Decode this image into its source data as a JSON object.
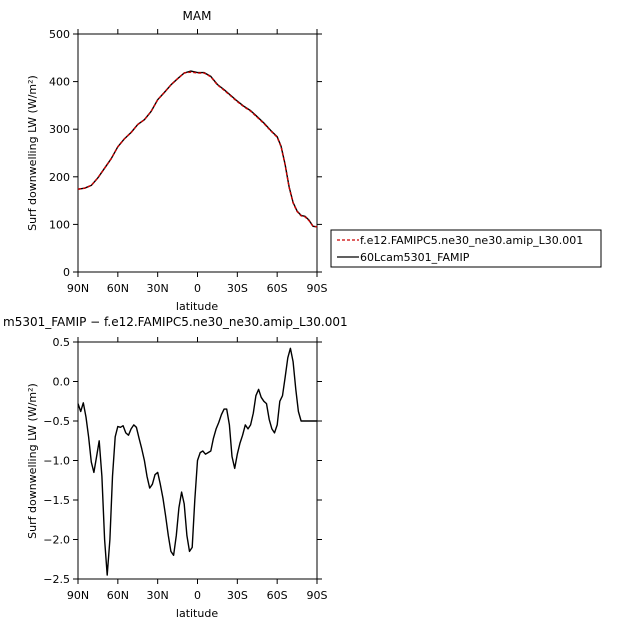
{
  "colors": {
    "series1": "#cc0000",
    "series2": "#000000"
  },
  "chart_data": [
    {
      "type": "line",
      "title": "MAM",
      "xlabel": "latitude",
      "ylabel": "Surf downwelling LW (W/m²)",
      "xlim": [
        90,
        -90
      ],
      "ylim": [
        0,
        500
      ],
      "x_ticks": [
        90,
        60,
        30,
        0,
        -30,
        -60,
        -90
      ],
      "x_tick_labels": [
        "90N",
        "60N",
        "30N",
        "0",
        "30S",
        "60S",
        "90S"
      ],
      "y_ticks": [
        0,
        100,
        200,
        300,
        400,
        500
      ],
      "y_tick_labels": [
        "0",
        "100",
        "200",
        "300",
        "400",
        "500"
      ],
      "grid": false,
      "legend_position": "outside-right",
      "series": [
        {
          "name": "f.e12.FAMIPC5.ne30_ne30.amip_L30.001",
          "color": "#cc0000",
          "dash": "dashed",
          "x": [
            90,
            85,
            80,
            75,
            70,
            65,
            60,
            55,
            50,
            45,
            40,
            35,
            30,
            25,
            20,
            15,
            10,
            5,
            0,
            -5,
            -10,
            -15,
            -20,
            -25,
            -30,
            -35,
            -40,
            -45,
            -50,
            -55,
            -60,
            -63,
            -66,
            -69,
            -72,
            -75,
            -78,
            -81,
            -84,
            -87,
            -90
          ],
          "values": [
            174,
            176,
            182,
            198,
            218,
            238,
            263,
            280,
            293,
            310,
            320,
            337,
            362,
            377,
            393,
            406,
            418,
            420,
            418,
            418,
            410,
            393,
            382,
            370,
            358,
            347,
            338,
            325,
            312,
            297,
            283,
            263,
            225,
            178,
            145,
            127,
            118,
            116,
            108,
            96,
            95
          ]
        },
        {
          "name": "60Lcam5301_FAMIP",
          "color": "#000000",
          "dash": "solid",
          "x": [
            90,
            85,
            80,
            75,
            70,
            65,
            60,
            55,
            50,
            45,
            40,
            35,
            30,
            25,
            20,
            15,
            10,
            5,
            0,
            -5,
            -10,
            -15,
            -20,
            -25,
            -30,
            -35,
            -40,
            -45,
            -50,
            -55,
            -60,
            -63,
            -66,
            -69,
            -72,
            -75,
            -78,
            -81,
            -84,
            -87,
            -90
          ],
          "values": [
            174,
            176,
            182,
            198,
            218,
            238,
            263,
            280,
            293,
            310,
            320,
            337,
            362,
            377,
            393,
            406,
            418,
            422,
            419,
            419,
            411,
            394,
            383,
            371,
            359,
            348,
            339,
            326,
            313,
            298,
            284,
            264,
            226,
            179,
            146,
            128,
            119,
            117,
            109,
            96,
            95
          ]
        }
      ]
    },
    {
      "type": "line",
      "title": "m5301_FAMIP − f.e12.FAMIPC5.ne30_ne30.amip_L30.001",
      "xlabel": "latitude",
      "ylabel": "Surf downwelling LW (W/m²)",
      "xlim": [
        90,
        -90
      ],
      "ylim": [
        -2.5,
        0.5
      ],
      "x_ticks": [
        90,
        60,
        30,
        0,
        -30,
        -60,
        -90
      ],
      "x_tick_labels": [
        "90N",
        "60N",
        "30N",
        "0",
        "30S",
        "60S",
        "90S"
      ],
      "y_ticks": [
        -2.5,
        -2.0,
        -1.5,
        -1.0,
        -0.5,
        0.0,
        0.5
      ],
      "y_tick_labels": [
        "−2.5",
        "−2.0",
        "−1.5",
        "−1.0",
        "−0.5",
        "0.0",
        "0.5"
      ],
      "grid": false,
      "series": [
        {
          "color": "#000000",
          "x": [
            90,
            88,
            86,
            84,
            82,
            80,
            78,
            76,
            74,
            72,
            70,
            68,
            66,
            64,
            62,
            60,
            58,
            56,
            54,
            52,
            50,
            48,
            46,
            44,
            42,
            40,
            38,
            36,
            34,
            32,
            30,
            28,
            26,
            24,
            22,
            20,
            18,
            16,
            14,
            12,
            10,
            8,
            6,
            4,
            2,
            0,
            -2,
            -4,
            -6,
            -8,
            -10,
            -12,
            -14,
            -16,
            -18,
            -20,
            -22,
            -24,
            -26,
            -28,
            -30,
            -32,
            -34,
            -36,
            -38,
            -40,
            -42,
            -44,
            -46,
            -48,
            -50,
            -52,
            -54,
            -56,
            -58,
            -60,
            -62,
            -64,
            -66,
            -68,
            -70,
            -72,
            -74,
            -76,
            -78,
            -80,
            -82,
            -84,
            -86,
            -88,
            -90
          ],
          "values": [
            -0.28,
            -0.38,
            -0.27,
            -0.45,
            -0.7,
            -1.02,
            -1.15,
            -0.95,
            -0.75,
            -1.2,
            -2.0,
            -2.45,
            -2.0,
            -1.2,
            -0.7,
            -0.57,
            -0.58,
            -0.56,
            -0.65,
            -0.68,
            -0.6,
            -0.55,
            -0.58,
            -0.72,
            -0.85,
            -1.0,
            -1.2,
            -1.35,
            -1.3,
            -1.18,
            -1.15,
            -1.3,
            -1.48,
            -1.7,
            -1.95,
            -2.15,
            -2.2,
            -1.95,
            -1.6,
            -1.4,
            -1.55,
            -1.95,
            -2.15,
            -2.1,
            -1.5,
            -1.0,
            -0.9,
            -0.88,
            -0.92,
            -0.9,
            -0.88,
            -0.72,
            -0.6,
            -0.52,
            -0.42,
            -0.35,
            -0.35,
            -0.55,
            -0.95,
            -1.1,
            -0.92,
            -0.78,
            -0.68,
            -0.55,
            -0.6,
            -0.55,
            -0.4,
            -0.18,
            -0.1,
            -0.2,
            -0.25,
            -0.28,
            -0.48,
            -0.6,
            -0.65,
            -0.55,
            -0.25,
            -0.18,
            0.05,
            0.3,
            0.42,
            0.25,
            -0.1,
            -0.38,
            -0.5,
            -0.5,
            -0.5,
            -0.5,
            -0.5,
            -0.5,
            -0.5
          ]
        }
      ]
    }
  ]
}
